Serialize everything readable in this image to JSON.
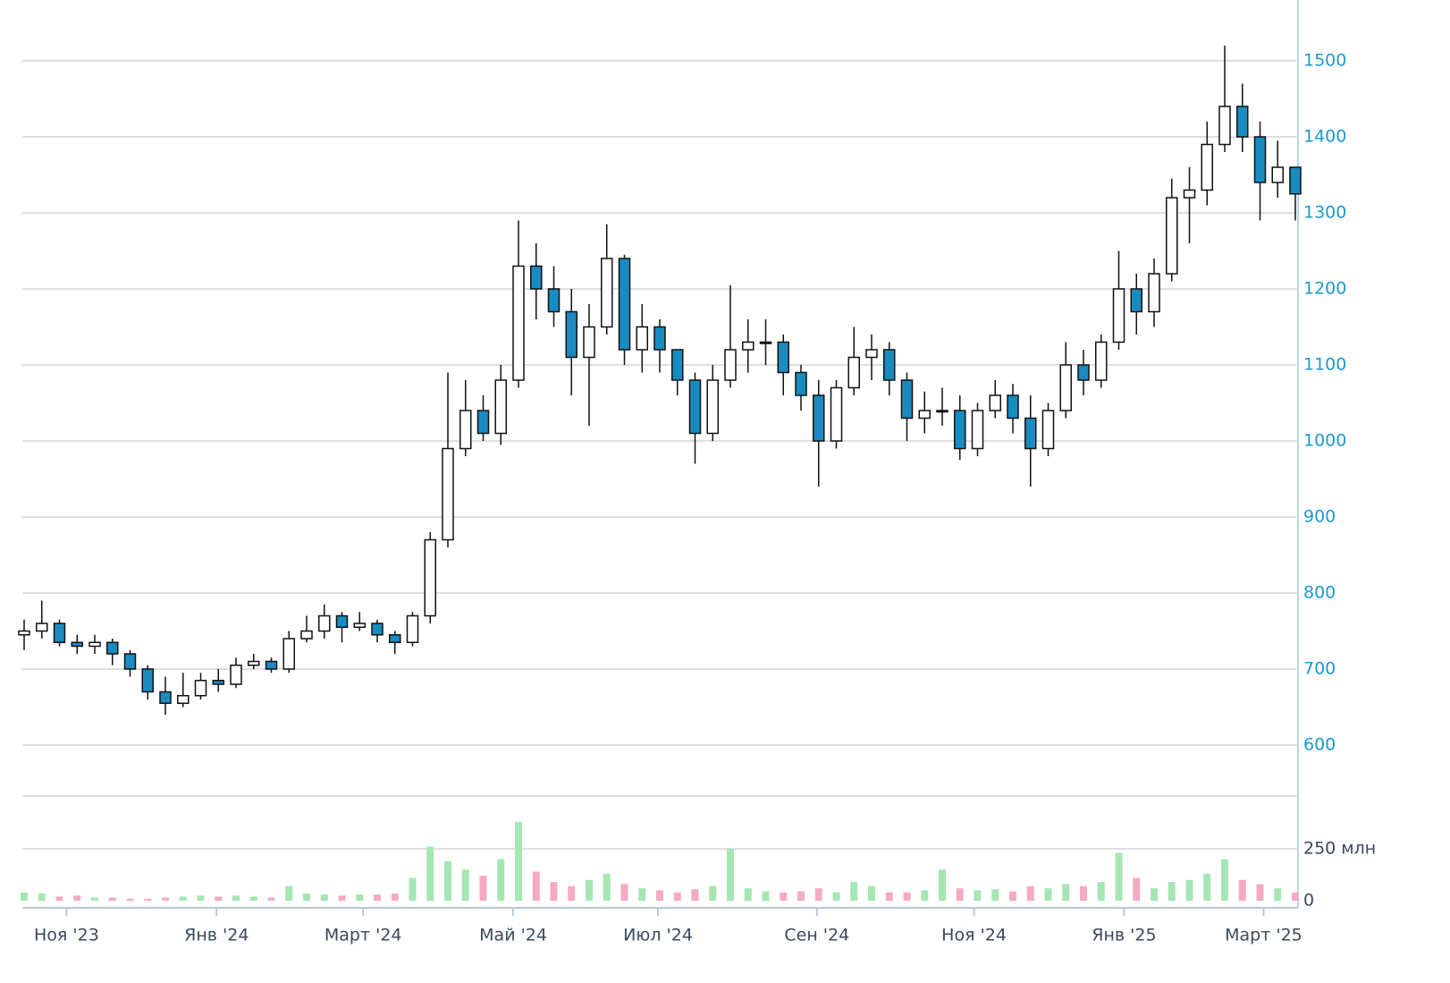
{
  "chart_data": [
    {
      "type": "candlestick",
      "categories": [
        null,
        null,
        null,
        null,
        null,
        null,
        null,
        null,
        null,
        null,
        null,
        null,
        null,
        null,
        null,
        null,
        null,
        null,
        null,
        null,
        null,
        null,
        null,
        null,
        null,
        null,
        null,
        null,
        null,
        null,
        null,
        null,
        null,
        null,
        null,
        null,
        null,
        null,
        null,
        null,
        null,
        null,
        null,
        null,
        null,
        null,
        null,
        null,
        null,
        null,
        null,
        null,
        null,
        null,
        null,
        null,
        null,
        null,
        null,
        null,
        null,
        null,
        null,
        null,
        null,
        null,
        null,
        null,
        null,
        null,
        null,
        null,
        null
      ],
      "open": [
        745,
        750,
        760,
        735,
        730,
        735,
        720,
        700,
        670,
        655,
        665,
        685,
        680,
        705,
        710,
        700,
        740,
        750,
        770,
        755,
        760,
        745,
        735,
        770,
        870,
        990,
        1040,
        1010,
        1080,
        1230,
        1200,
        1170,
        1110,
        1150,
        1240,
        1120,
        1150,
        1120,
        1080,
        1010,
        1080,
        1120,
        1130,
        1130,
        1090,
        1060,
        1000,
        1070,
        1110,
        1120,
        1080,
        1030,
        1040,
        1040,
        990,
        1040,
        1060,
        1030,
        990,
        1040,
        1100,
        1080,
        1130,
        1200,
        1170,
        1220,
        1320,
        1330,
        1390,
        1440,
        1400,
        1340,
        1360
      ],
      "high": [
        765,
        790,
        765,
        745,
        745,
        740,
        725,
        705,
        690,
        695,
        695,
        700,
        715,
        720,
        715,
        750,
        770,
        785,
        775,
        775,
        765,
        750,
        775,
        880,
        1090,
        1080,
        1060,
        1100,
        1290,
        1260,
        1230,
        1200,
        1180,
        1285,
        1245,
        1180,
        1160,
        1120,
        1090,
        1100,
        1205,
        1160,
        1160,
        1140,
        1100,
        1080,
        1080,
        1150,
        1140,
        1130,
        1090,
        1065,
        1070,
        1060,
        1050,
        1080,
        1075,
        1060,
        1050,
        1130,
        1120,
        1140,
        1250,
        1220,
        1240,
        1345,
        1360,
        1420,
        1520,
        1470,
        1420,
        1395,
        1360
      ],
      "low": [
        725,
        740,
        730,
        720,
        720,
        705,
        690,
        660,
        640,
        650,
        660,
        670,
        675,
        700,
        695,
        695,
        735,
        740,
        735,
        750,
        735,
        720,
        730,
        760,
        860,
        980,
        1000,
        995,
        1070,
        1160,
        1150,
        1060,
        1020,
        1140,
        1100,
        1090,
        1090,
        1060,
        970,
        1000,
        1070,
        1090,
        1100,
        1060,
        1040,
        940,
        990,
        1060,
        1080,
        1060,
        1000,
        1010,
        1020,
        975,
        980,
        1030,
        1010,
        940,
        980,
        1030,
        1060,
        1070,
        1120,
        1140,
        1150,
        1210,
        1260,
        1310,
        1380,
        1380,
        1290,
        1320,
        1290
      ],
      "close": [
        750,
        760,
        735,
        730,
        735,
        720,
        700,
        670,
        655,
        665,
        685,
        680,
        705,
        710,
        700,
        740,
        750,
        770,
        755,
        760,
        745,
        735,
        770,
        870,
        990,
        1040,
        1010,
        1080,
        1230,
        1200,
        1170,
        1110,
        1150,
        1240,
        1120,
        1150,
        1120,
        1080,
        1010,
        1080,
        1120,
        1130,
        1130,
        1090,
        1060,
        1000,
        1070,
        1110,
        1120,
        1080,
        1030,
        1040,
        1040,
        990,
        1040,
        1060,
        1030,
        990,
        1040,
        1100,
        1080,
        1130,
        1200,
        1170,
        1220,
        1320,
        1330,
        1390,
        1440,
        1400,
        1340,
        1360,
        1325
      ],
      "up_color": "#ffffff",
      "down_color": "#1a8bc0",
      "xlim": [
        0,
        72
      ],
      "ylim": [
        600,
        1580
      ],
      "yticks": [
        600,
        700,
        800,
        900,
        1000,
        1100,
        1200,
        1300,
        1400,
        1500
      ],
      "grid": true
    },
    {
      "type": "volume",
      "values": [
        40,
        35,
        20,
        25,
        15,
        15,
        10,
        10,
        15,
        20,
        25,
        20,
        25,
        20,
        15,
        70,
        35,
        30,
        25,
        30,
        30,
        35,
        110,
        260,
        190,
        150,
        120,
        200,
        380,
        140,
        90,
        70,
        100,
        130,
        80,
        60,
        50,
        40,
        55,
        70,
        250,
        60,
        45,
        40,
        45,
        60,
        40,
        90,
        70,
        40,
        40,
        50,
        150,
        60,
        50,
        55,
        45,
        70,
        60,
        80,
        70,
        90,
        230,
        110,
        60,
        90,
        100,
        130,
        200,
        100,
        80,
        60,
        40
      ],
      "up_color": "#a6e6b4",
      "down_color": "#f5aac4",
      "ylim": [
        0,
        500
      ],
      "yticks": [
        0,
        {
          "value": 250,
          "label": "250 млн"
        }
      ],
      "xticks": [
        {
          "value": 2.4,
          "label": "Ноя '23"
        },
        {
          "value": 10.9,
          "label": "Янв '24"
        },
        {
          "value": 19.2,
          "label": "Март '24"
        },
        {
          "value": 27.7,
          "label": "Май '24"
        },
        {
          "value": 35.9,
          "label": "Июл '24"
        },
        {
          "value": 44.9,
          "label": "Сен '24"
        },
        {
          "value": 53.8,
          "label": "Ноя '24"
        },
        {
          "value": 62.3,
          "label": "Янв '25"
        },
        {
          "value": 70.2,
          "label": "Март '25"
        }
      ],
      "grid": true
    }
  ]
}
